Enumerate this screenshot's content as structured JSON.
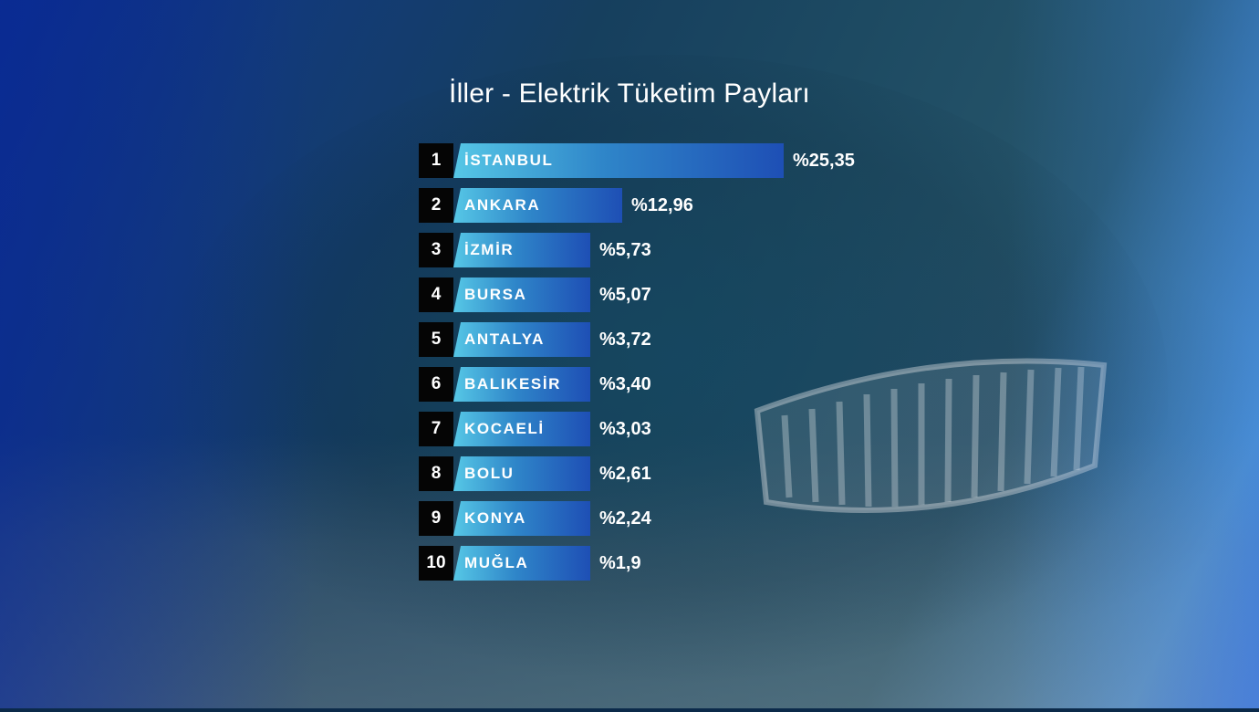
{
  "title": "İller - Elektrik Tüketim Payları",
  "chart_data": {
    "type": "bar",
    "orientation": "horizontal",
    "title": "İller - Elektrik Tüketim Payları",
    "ranks": [
      "1",
      "2",
      "3",
      "4",
      "5",
      "6",
      "7",
      "8",
      "9",
      "10"
    ],
    "categories": [
      "İSTANBUL",
      "ANKARA",
      "İZMİR",
      "BURSA",
      "ANTALYA",
      "BALIKESİR",
      "KOCAELİ",
      "BOLU",
      "KONYA",
      "MUĞLA"
    ],
    "values": [
      25.35,
      12.96,
      5.73,
      5.07,
      3.72,
      3.4,
      3.03,
      2.61,
      2.24,
      1.9
    ],
    "value_labels": [
      "%25,35",
      "%12,96",
      "%5,73",
      "%5,07",
      "%3,72",
      "%3,40",
      "%3,03",
      "%2,61",
      "%2,24",
      "%1,9"
    ],
    "bar_colors": [
      "#56c7e6",
      "#1e4fb5"
    ],
    "rank_box_color": "#050505",
    "legend": "none",
    "grid": false
  }
}
